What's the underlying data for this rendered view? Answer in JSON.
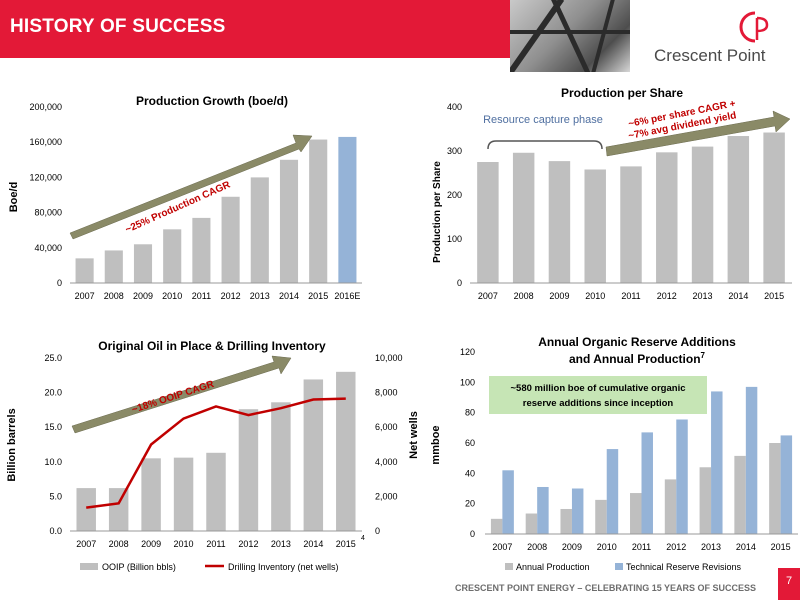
{
  "header": {
    "title": "HISTORY OF SUCCESS",
    "logo_text": "Crescent Point",
    "brand_red": "#e31937"
  },
  "footer": {
    "text": "CRESCENT POINT ENERGY – CELEBRATING 15 YEARS OF SUCCESS",
    "page_number": "7"
  },
  "chart_data": [
    {
      "type": "bar",
      "title": "Production Growth (boe/d)",
      "ylabel": "Boe/d",
      "categories": [
        "2007",
        "2008",
        "2009",
        "2010",
        "2011",
        "2012",
        "2013",
        "2014",
        "2015",
        "2016E"
      ],
      "values": [
        28000,
        37000,
        44000,
        61000,
        74000,
        98000,
        120000,
        140000,
        163000,
        166000
      ],
      "bar_colors": [
        "#bfbfbf",
        "#bfbfbf",
        "#bfbfbf",
        "#bfbfbf",
        "#bfbfbf",
        "#bfbfbf",
        "#bfbfbf",
        "#bfbfbf",
        "#bfbfbf",
        "#95b3d7"
      ],
      "ylim": [
        0,
        200000
      ],
      "yticks": [
        "0",
        "40,000",
        "80,000",
        "120,000",
        "160,000",
        "200,000"
      ],
      "annotation": "~25% Production CAGR"
    },
    {
      "type": "bar",
      "title": "Production per Share",
      "ylabel": "Production per Share",
      "categories": [
        "2007",
        "2008",
        "2009",
        "2010",
        "2011",
        "2012",
        "2013",
        "2014",
        "2015"
      ],
      "values": [
        275,
        296,
        277,
        258,
        265,
        297,
        310,
        334,
        342
      ],
      "ylim": [
        0,
        400
      ],
      "yticks": [
        "0",
        "100",
        "200",
        "300",
        "400"
      ],
      "annotation_box": "Resource capture phase",
      "annotation_arrow": [
        "~6% per share CAGR +",
        "~7% avg dividend yield"
      ]
    },
    {
      "type": "bar",
      "title": "Original Oil in Place & Drilling Inventory",
      "ylabel": "Billion barrels",
      "y2label": "Net wells",
      "categories": [
        "2007",
        "2008",
        "2009",
        "2010",
        "2011",
        "2012",
        "2013",
        "2014",
        "2015"
      ],
      "series": [
        {
          "name": "OOIP (Billion bbls)",
          "type": "bar",
          "values": [
            6.2,
            6.2,
            10.5,
            10.6,
            11.3,
            17.6,
            18.6,
            21.9,
            23.0
          ]
        },
        {
          "name": "Drilling Inventory (net wells)",
          "type": "line",
          "axis": "y2",
          "values": [
            1350,
            1600,
            5000,
            6500,
            7200,
            6700,
            7100,
            7600,
            7650
          ]
        }
      ],
      "ylim": [
        0,
        25
      ],
      "y2lim": [
        0,
        10000
      ],
      "yticks": [
        "0.0",
        "5.0",
        "10.0",
        "15.0",
        "20.0",
        "25.0"
      ],
      "y2ticks": [
        "0",
        "2,000",
        "4,000",
        "6,000",
        "8,000",
        "10,000"
      ],
      "footnote_marker": "4",
      "annotation": "~18% OOIP CAGR"
    },
    {
      "type": "bar",
      "title": [
        "Annual Organic Reserve Additions",
        "and Annual Production"
      ],
      "title_superscript": "7",
      "ylabel": "mmboe",
      "categories": [
        "2007",
        "2008",
        "2009",
        "2010",
        "2011",
        "2012",
        "2013",
        "2014",
        "2015"
      ],
      "series": [
        {
          "name": "Annual Production",
          "values": [
            10,
            13.5,
            16.5,
            22.5,
            27,
            36,
            44,
            51.5,
            60
          ]
        },
        {
          "name": "Technical Reserve Revisions",
          "values": [
            42,
            31,
            30,
            56,
            67,
            75.5,
            94,
            97,
            65
          ]
        }
      ],
      "ylim": [
        0,
        120
      ],
      "yticks": [
        "0",
        "20",
        "40",
        "60",
        "80",
        "100",
        "120"
      ],
      "annotation_box": [
        "~580 million boe of cumulative organic",
        "reserve additions since inception"
      ]
    }
  ],
  "colors": {
    "bar_grey": "#bfbfbf",
    "bar_blue": "#95b3d7",
    "line_red": "#c00000",
    "arrow_fill": "#8a8a67",
    "callout_green": "#c6e5b5"
  }
}
